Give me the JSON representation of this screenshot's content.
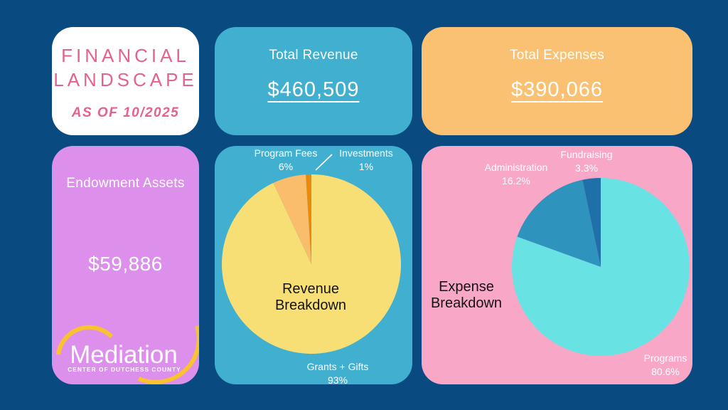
{
  "page": {
    "background_color": "#094B80"
  },
  "title_card": {
    "line1": "FINANCIAL",
    "line2": "LANDSCAPE",
    "subtitle": "AS OF 10/2025",
    "text_color": "#E4628C",
    "background_color": "#FFFFFF"
  },
  "revenue_card": {
    "label": "Total Revenue",
    "value": "$460,509",
    "background_color": "#41AFD0"
  },
  "expenses_card": {
    "label": "Total Expenses",
    "value": "$390,066",
    "background_color": "#FAC172"
  },
  "endowment_card": {
    "label": "Endowment Assets",
    "value": "$59,886",
    "background_color": "#DC90EC"
  },
  "logo": {
    "name": "Mediation",
    "tagline": "CENTER OF DUTCHESS COUNTY",
    "arc_color": "#FBC230",
    "text_color": "#FFFFFF"
  },
  "chart_data": [
    {
      "type": "pie",
      "title": "Revenue Breakdown",
      "card_background": "#41AFD0",
      "start_angle_deg": 0,
      "direction": "clockwise",
      "slices": [
        {
          "label": "Grants + Gifts",
          "value": 93,
          "pct_label": "93%",
          "color": "#F8DF75"
        },
        {
          "label": "Program Fees",
          "value": 6,
          "pct_label": "6%",
          "color": "#FABD6B"
        },
        {
          "label": "Investments",
          "value": 1,
          "pct_label": "1%",
          "color": "#E98A0B"
        }
      ]
    },
    {
      "type": "pie",
      "title": "Expense Breakdown",
      "card_background": "#F9A7C6",
      "start_angle_deg": 0,
      "direction": "clockwise",
      "slices": [
        {
          "label": "Programs",
          "value": 80.6,
          "pct_label": "80.6%",
          "color": "#69E2E4"
        },
        {
          "label": "Administration",
          "value": 16.2,
          "pct_label": "16.2%",
          "color": "#2E93BD"
        },
        {
          "label": "Fundraising",
          "value": 3.3,
          "pct_label": "3.3%",
          "color": "#1F70A8"
        }
      ]
    }
  ]
}
